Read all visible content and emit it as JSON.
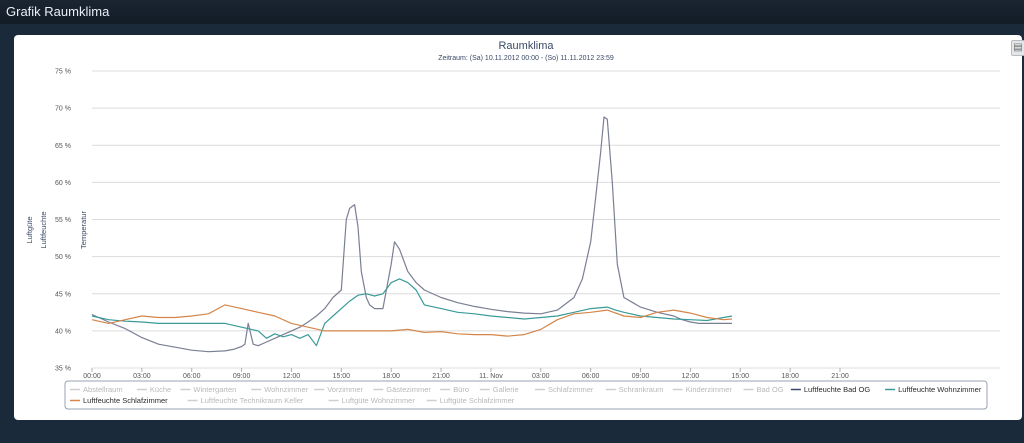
{
  "window": {
    "title": "Grafik Raumklima"
  },
  "export_icon": "chart-export-icon",
  "chart_data": {
    "type": "line",
    "title": "Raumklima",
    "subtitle": "Zeitraum: (Sa) 10.11.2012 00:00 - (So) 11.11.2012 23:59",
    "y_axis_labels": [
      "Luftgüte",
      "Luftfeuchte",
      "Temperatur"
    ],
    "y_unit": "%",
    "ylim": [
      35,
      75
    ],
    "y_ticks": [
      "35 %",
      "40 %",
      "45 %",
      "50 %",
      "55 %",
      "60 %",
      "65 %",
      "70 %",
      "75 %"
    ],
    "x_ticks": [
      "00:00",
      "03:00",
      "06:00",
      "09:00",
      "12:00",
      "15:00",
      "18:00",
      "21:00",
      "11. Nov",
      "03:00",
      "06:00",
      "09:00",
      "12:00",
      "15:00",
      "18:00",
      "21:00"
    ],
    "grid": true,
    "legend_position": "bottom",
    "legend": [
      {
        "name": "Abstellraum",
        "active": false
      },
      {
        "name": "Küche",
        "active": false
      },
      {
        "name": "Wintergarten",
        "active": false
      },
      {
        "name": "Wohnzimmer",
        "active": false
      },
      {
        "name": "Vorzimmer",
        "active": false
      },
      {
        "name": "Gästezimmer",
        "active": false
      },
      {
        "name": "Büro",
        "active": false
      },
      {
        "name": "Gallerie",
        "active": false
      },
      {
        "name": "Schlafzimmer",
        "active": false
      },
      {
        "name": "Schrankraum",
        "active": false
      },
      {
        "name": "Kinderzimmer",
        "active": false
      },
      {
        "name": "Bad OG",
        "active": false
      },
      {
        "name": "Luftfeuchte Bad OG",
        "active": true,
        "color": "#3d4a6b"
      },
      {
        "name": "Luftfeuchte Wohnzimmer",
        "active": true,
        "color": "#3a9a9a"
      },
      {
        "name": "Luftfeuchte Schlafzimmer",
        "active": true,
        "color": "#d4864a"
      },
      {
        "name": "Luftfeuchte Technikraum Keller",
        "active": false
      },
      {
        "name": "Luftgüte Wohnzimmer",
        "active": false
      },
      {
        "name": "Luftgüte Schlafzimmer",
        "active": false
      }
    ],
    "series": [
      {
        "name": "Luftfeuchte Bad OG",
        "color": "#7a7f94",
        "x": [
          0,
          1,
          2,
          3,
          4,
          5,
          6,
          7,
          8,
          8.5,
          9,
          9.2,
          9.4,
          9.7,
          10,
          10.5,
          11,
          11.5,
          12,
          12.5,
          13,
          13.5,
          14,
          14.5,
          15,
          15.3,
          15.5,
          15.8,
          16,
          16.2,
          16.5,
          16.7,
          17,
          17.5,
          18,
          18.2,
          18.5,
          19,
          19.5,
          20,
          21,
          22,
          23,
          24,
          25,
          26,
          27,
          28,
          29,
          29.5,
          30,
          30.3,
          30.6,
          30.8,
          31,
          31.3,
          31.6,
          32,
          33,
          34,
          35,
          35.5,
          36,
          36.5,
          37,
          37.5,
          38,
          38.5
        ],
        "y": [
          42.2,
          41.2,
          40.3,
          39.1,
          38.2,
          37.8,
          37.4,
          37.2,
          37.3,
          37.5,
          37.9,
          38.2,
          41.0,
          38.2,
          38.0,
          38.5,
          39.0,
          39.5,
          40.0,
          40.5,
          41.2,
          42.0,
          43.0,
          44.5,
          45.5,
          55.0,
          56.5,
          57.0,
          54.0,
          48.0,
          44.5,
          43.5,
          43.0,
          43.0,
          49.0,
          52.0,
          51.0,
          48.0,
          46.5,
          45.5,
          44.5,
          43.8,
          43.3,
          42.9,
          42.6,
          42.4,
          42.3,
          42.8,
          44.5,
          47.0,
          52.0,
          58.0,
          64.0,
          68.8,
          68.5,
          60.0,
          49.0,
          44.5,
          43.2,
          42.5,
          42.0,
          41.5,
          41.2,
          41.0,
          41.0,
          41.0,
          41.0,
          41.0
        ]
      },
      {
        "name": "Luftfeuchte Wohnzimmer",
        "color": "#3a9a9a",
        "x": [
          0,
          1,
          2,
          3,
          4,
          5,
          6,
          7,
          8,
          9,
          10,
          10.5,
          11,
          11.5,
          12,
          12.5,
          13,
          13.5,
          14,
          14.5,
          15,
          15.5,
          16,
          16.5,
          17,
          17.5,
          18,
          18.5,
          19,
          19.5,
          20,
          21,
          22,
          23,
          24,
          25,
          26,
          27,
          28,
          29,
          30,
          31,
          31.5,
          32,
          33,
          34,
          35,
          36,
          37,
          37.5,
          38,
          38.5
        ],
        "y": [
          42.0,
          41.5,
          41.3,
          41.2,
          41.0,
          41.0,
          41.0,
          41.0,
          41.0,
          40.5,
          40.0,
          39.0,
          39.6,
          39.2,
          39.5,
          39.0,
          39.5,
          38.0,
          41.0,
          42.0,
          43.0,
          44.0,
          44.8,
          45.0,
          44.7,
          45.0,
          46.5,
          47.0,
          46.5,
          45.5,
          43.5,
          43.0,
          42.5,
          42.3,
          42.0,
          41.8,
          41.6,
          41.8,
          42.0,
          42.5,
          43.0,
          43.2,
          42.8,
          42.5,
          42.0,
          41.8,
          41.6,
          41.5,
          41.4,
          41.6,
          41.8,
          42.0
        ]
      },
      {
        "name": "Luftfeuchte Schlafzimmer",
        "color": "#d4864a",
        "x": [
          0,
          1,
          2,
          3,
          4,
          5,
          6,
          7,
          8,
          9,
          10,
          11,
          12,
          13,
          14,
          15,
          16,
          17,
          18,
          19,
          20,
          21,
          22,
          23,
          24,
          25,
          26,
          27,
          28,
          29,
          30,
          31,
          32,
          33,
          34,
          35,
          36,
          37,
          38,
          38.5
        ],
        "y": [
          41.5,
          41.0,
          41.5,
          42.0,
          41.8,
          41.8,
          42.0,
          42.3,
          43.5,
          43.0,
          42.5,
          42.0,
          41.0,
          40.5,
          40.0,
          40.0,
          40.0,
          40.0,
          40.0,
          40.2,
          39.8,
          39.9,
          39.6,
          39.5,
          39.5,
          39.3,
          39.5,
          40.2,
          41.5,
          42.3,
          42.5,
          42.8,
          42.0,
          41.8,
          42.5,
          42.8,
          42.4,
          41.8,
          41.5,
          41.6
        ]
      }
    ]
  }
}
